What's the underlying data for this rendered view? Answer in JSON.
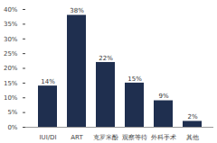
{
  "chart_data": {
    "type": "bar",
    "categories": [
      "IUI/DI",
      "ART",
      "克罗米酚",
      "观察等待",
      "外科手术",
      "其他"
    ],
    "values": [
      14,
      38,
      22,
      15,
      9,
      2
    ],
    "value_labels": [
      "14%",
      "38%",
      "22%",
      "15%",
      "9%",
      "2%"
    ],
    "data_labels": true,
    "color": "#1f2f4f",
    "ylim": [
      0,
      40
    ],
    "yticks": [
      {
        "value": 0,
        "label": "0%"
      },
      {
        "value": 5,
        "label": "5%"
      },
      {
        "value": 10,
        "label": "10%"
      },
      {
        "value": 15,
        "label": "15%"
      },
      {
        "value": 20,
        "label": "20%"
      },
      {
        "value": 25,
        "label": "25%"
      },
      {
        "value": 30,
        "label": "30%"
      },
      {
        "value": 35,
        "label": "35%"
      },
      {
        "value": 40,
        "label": "40%"
      }
    ],
    "grid": false
  }
}
